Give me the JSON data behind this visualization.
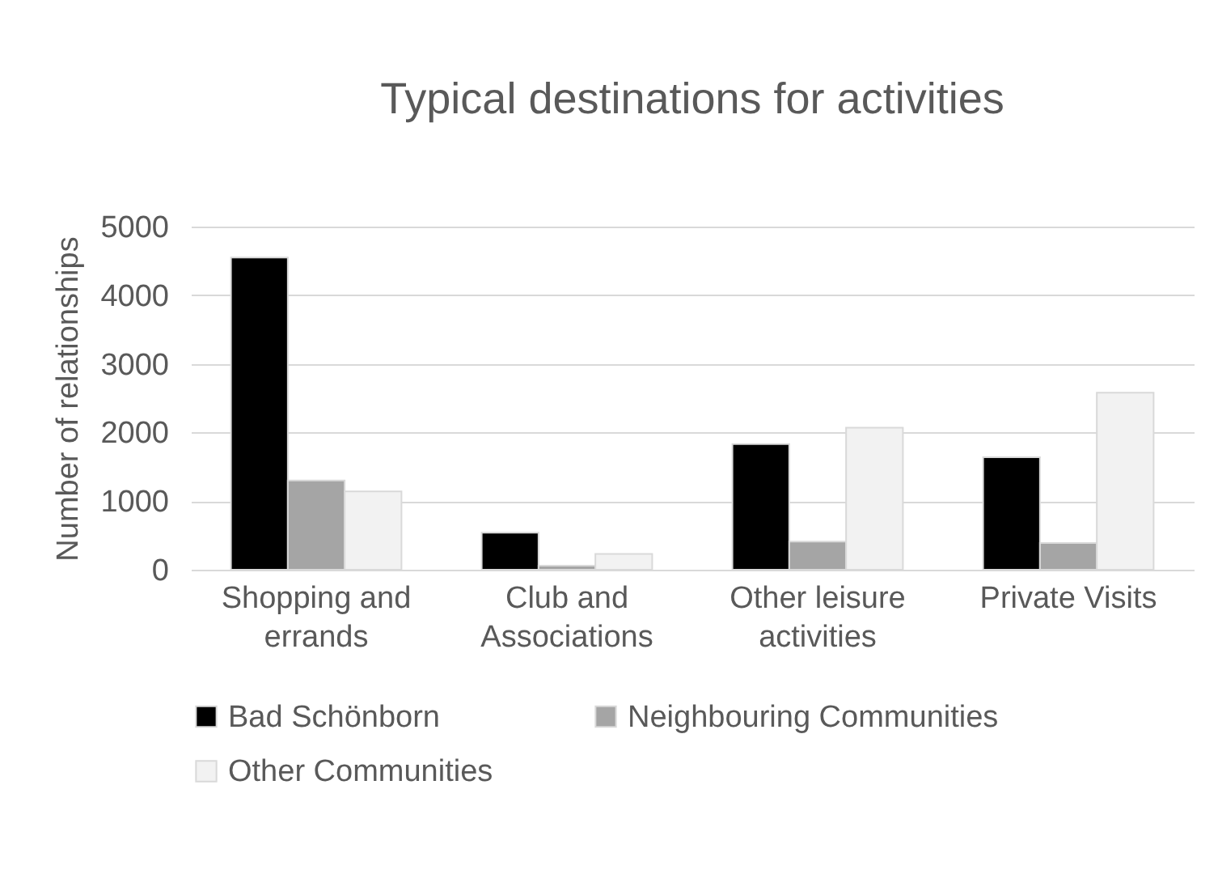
{
  "chart_data": {
    "type": "bar",
    "title": "Typical destinations for activities",
    "ylabel": "Number of relationships",
    "categories": [
      "Shopping and errands",
      "Club and Associations",
      "Other leisure activities",
      "Private Visits"
    ],
    "series": [
      {
        "name": "Bad Schönborn",
        "color": "#000000",
        "values": [
          4550,
          540,
          1830,
          1640
        ]
      },
      {
        "name": "Neighbouring Communities",
        "color": "#a5a5a5",
        "values": [
          1300,
          60,
          410,
          390
        ]
      },
      {
        "name": "Other Communities",
        "color": "#f2f2f2",
        "values": [
          1140,
          230,
          2070,
          2580
        ]
      }
    ],
    "ylim": [
      0,
      5000
    ],
    "yticks": [
      0,
      1000,
      2000,
      3000,
      4000,
      5000
    ],
    "grid": "y",
    "legend": "bottom"
  }
}
